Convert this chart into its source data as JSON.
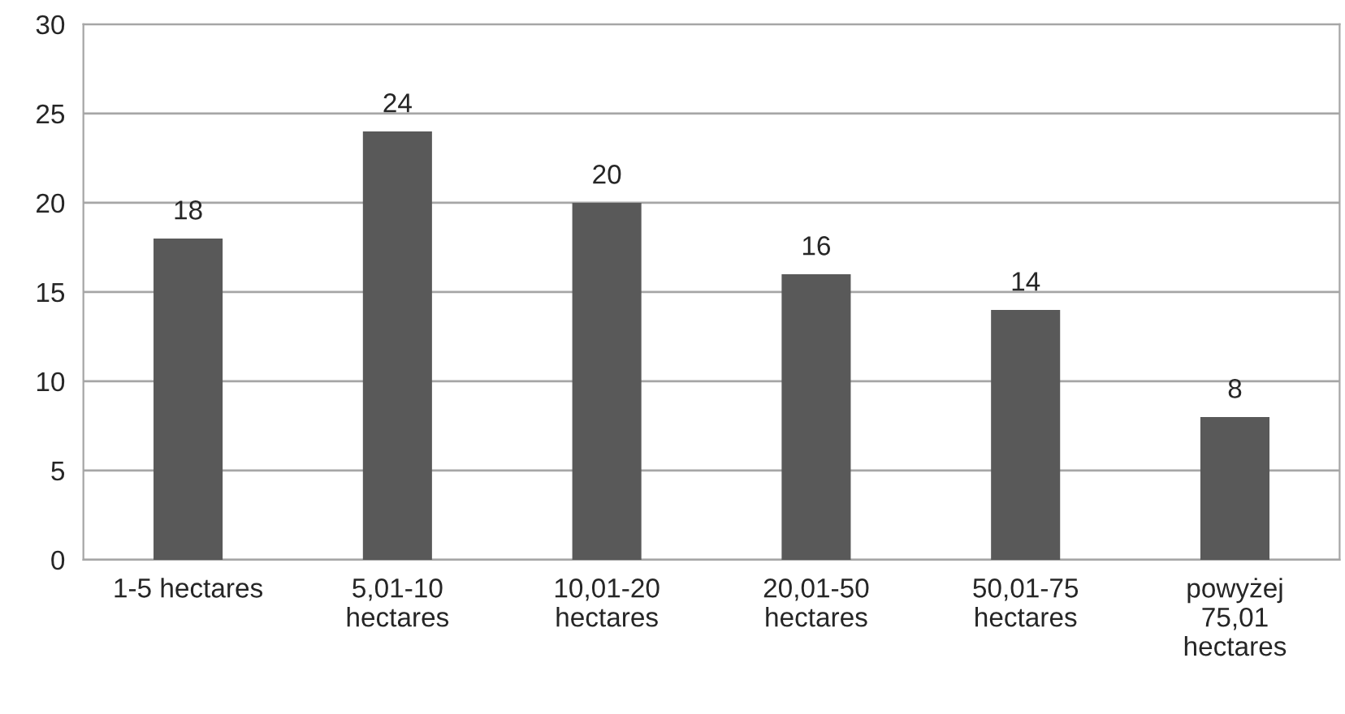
{
  "chart_data": {
    "type": "bar",
    "categories": [
      "1-5 hectares",
      "5,01-10\nhectares",
      "10,01-20\nhectares",
      "20,01-50\nhectares",
      "50,01-75\nhectares",
      "powyżej\n75,01\nhectares"
    ],
    "values": [
      18,
      24,
      20,
      16,
      14,
      8
    ],
    "color": "#595959",
    "ylim": [
      0,
      30
    ],
    "yticks": [
      0,
      5,
      10,
      15,
      20,
      25,
      30
    ],
    "grid": "y",
    "data_labels": true,
    "legend": false
  }
}
